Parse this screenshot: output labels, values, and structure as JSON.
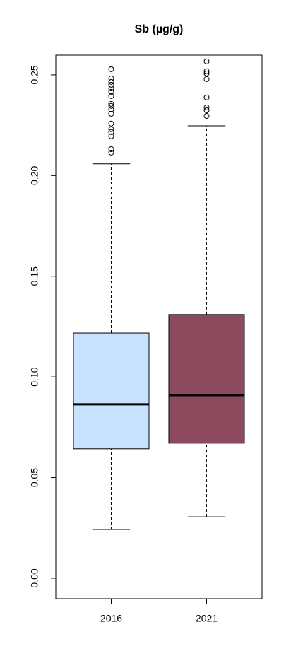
{
  "chart_data": {
    "type": "boxplot",
    "title": "Sb (µg/g)",
    "categories": [
      "2016",
      "2021"
    ],
    "boxes": [
      {
        "color": "#c6e2ff",
        "whisker_low": 0.0242,
        "q1": 0.0643,
        "median": 0.0864,
        "q3": 0.1218,
        "whisker_high": 0.2058,
        "outliers": [
          0.2528,
          0.2482,
          0.2465,
          0.2451,
          0.2433,
          0.2416,
          0.2395,
          0.2356,
          0.2346,
          0.2328,
          0.2307,
          0.2258,
          0.223,
          0.2216,
          0.2195,
          0.2131,
          0.2114
        ]
      },
      {
        "color": "#8b4a5e",
        "whisker_low": 0.0305,
        "q1": 0.0671,
        "median": 0.0909,
        "q3": 0.131,
        "whisker_high": 0.2247,
        "outliers": [
          0.2567,
          0.2518,
          0.2507,
          0.2479,
          0.2388,
          0.2338,
          0.2324,
          0.2296
        ]
      }
    ],
    "ylim": [
      -0.0102,
      0.2598
    ],
    "yticks": [
      {
        "value": 0,
        "label": "0.00"
      },
      {
        "value": 0.05,
        "label": "0.05"
      },
      {
        "value": 0.1,
        "label": "0.10"
      },
      {
        "value": 0.15,
        "label": "0.15"
      },
      {
        "value": 0.2,
        "label": "0.20"
      },
      {
        "value": 0.25,
        "label": "0.25"
      }
    ]
  }
}
